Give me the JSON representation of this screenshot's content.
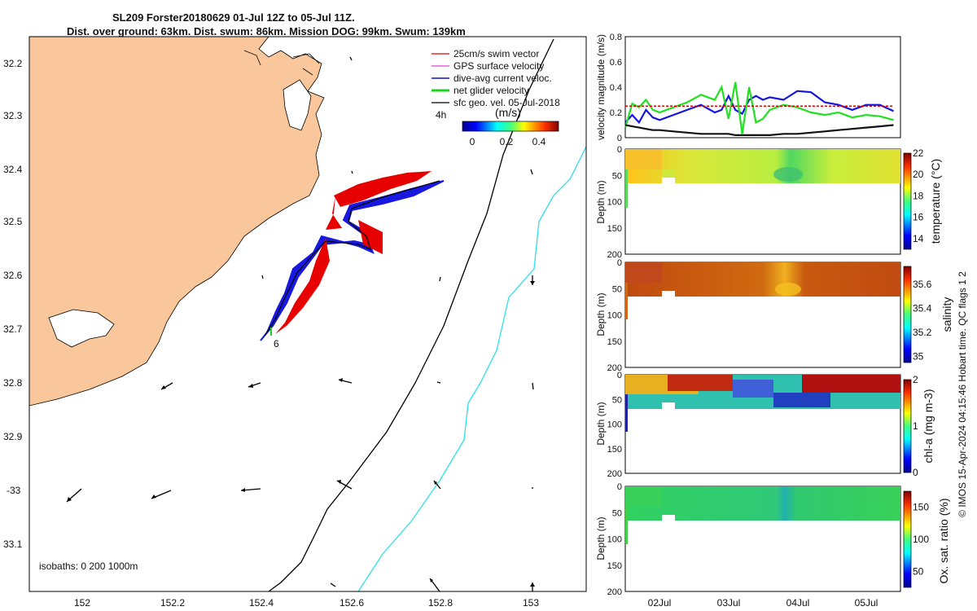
{
  "header": {
    "title_line1": "SL209 Forster20180629 01-Jul 12Z to 05-Jul 11Z.",
    "title_line2": "Dist. over ground: 63km. Dist. swum: 86km. Mission DOG: 99km. Swum: 139km"
  },
  "map": {
    "lat_ticks": [
      "32.2",
      "32.3",
      "32.4",
      "32.5",
      "32.6",
      "32.7",
      "32.8",
      "32.9",
      "-33",
      "33.1"
    ],
    "lon_ticks": [
      "152",
      "152.2",
      "152.4",
      "152.6",
      "152.8",
      "153"
    ],
    "legend": [
      {
        "label": "25cm/s swim vector",
        "color": "#e00000"
      },
      {
        "label": "GPS surface velocity",
        "color": "#e040e0"
      },
      {
        "label": "dive-avg current veloc.",
        "color": "#1010d0"
      },
      {
        "label": "net glider velocity",
        "color": "#20d020"
      },
      {
        "label": "sfc geo. vel. 05-Jul-2018",
        "color": "#000000"
      }
    ],
    "colorbar_title": "(m/s)",
    "colorbar_ticks": [
      "0",
      "0.2",
      "0.4"
    ],
    "time_label": "4h",
    "start_marker": "6",
    "isobaths_label": "isobaths: 0   200  1000m",
    "land_color": "#f9c79b"
  },
  "chart_data": [
    {
      "type": "line",
      "ylabel": "velocity magnitude (m/s)",
      "ylim": [
        0,
        0.8
      ],
      "yticks": [
        "0",
        "0.2",
        "0.4",
        "0.6",
        "0.8"
      ],
      "x_days": [
        1.5,
        1.6,
        1.7,
        1.8,
        1.9,
        2.0,
        2.2,
        2.4,
        2.6,
        2.8,
        2.9,
        3.0,
        3.1,
        3.2,
        3.3,
        3.4,
        3.5,
        3.6,
        3.8,
        4.0,
        4.2,
        4.4,
        4.6,
        4.8,
        5.0,
        5.2,
        5.4
      ],
      "series": [
        {
          "color": "#1515e0",
          "values": [
            0.12,
            0.18,
            0.12,
            0.22,
            0.16,
            0.14,
            0.18,
            0.22,
            0.26,
            0.2,
            0.22,
            0.33,
            0.22,
            0.19,
            0.3,
            0.33,
            0.3,
            0.32,
            0.3,
            0.37,
            0.36,
            0.28,
            0.26,
            0.22,
            0.26,
            0.26,
            0.21
          ]
        },
        {
          "color": "#20e020",
          "values": [
            0.08,
            0.27,
            0.24,
            0.3,
            0.22,
            0.2,
            0.24,
            0.28,
            0.34,
            0.3,
            0.4,
            0.15,
            0.44,
            0.03,
            0.4,
            0.12,
            0.15,
            0.22,
            0.26,
            0.24,
            0.2,
            0.18,
            0.2,
            0.16,
            0.18,
            0.17,
            0.14
          ]
        },
        {
          "color": "#e00000",
          "values": [
            0.25,
            0.25,
            0.25,
            0.25,
            0.25,
            0.25,
            0.25,
            0.25,
            0.25,
            0.25,
            0.25,
            0.25,
            0.25,
            0.25,
            0.25,
            0.25,
            0.25,
            0.25,
            0.25,
            0.25,
            0.25,
            0.25,
            0.25,
            0.25,
            0.25,
            0.25,
            0.25
          ]
        },
        {
          "color": "#111111",
          "values": [
            0.1,
            0.09,
            0.08,
            0.07,
            0.06,
            0.06,
            0.05,
            0.04,
            0.03,
            0.03,
            0.03,
            0.03,
            0.02,
            0.02,
            0.02,
            0.02,
            0.02,
            0.02,
            0.03,
            0.03,
            0.04,
            0.05,
            0.06,
            0.07,
            0.08,
            0.09,
            0.1
          ]
        }
      ]
    },
    {
      "type": "heatmap",
      "field": "temperature",
      "ylabel": "Depth (m)",
      "ylim": [
        0,
        200
      ],
      "yticks": [
        "0",
        "50",
        "100",
        "150",
        "200"
      ],
      "cbar_label": "temperature (°C)",
      "cbar_ticks": [
        "14",
        "16",
        "18",
        "20",
        "22"
      ],
      "cbar_range": [
        13,
        22
      ]
    },
    {
      "type": "heatmap",
      "field": "salinity",
      "ylabel": "Depth (m)",
      "ylim": [
        0,
        200
      ],
      "yticks": [
        "0",
        "50",
        "100",
        "150",
        "200"
      ],
      "cbar_label": "salinity",
      "cbar_ticks": [
        "35",
        "35.2",
        "35.4",
        "35.6"
      ],
      "cbar_range": [
        34.95,
        35.75
      ]
    },
    {
      "type": "heatmap",
      "field": "chl-a",
      "ylabel": "Depth (m)",
      "ylim": [
        0,
        200
      ],
      "yticks": [
        "0",
        "50",
        "100",
        "150",
        "200"
      ],
      "cbar_label": "chl-a (mg m-3)",
      "cbar_ticks": [
        "0",
        "1",
        "2"
      ],
      "cbar_range": [
        0,
        2
      ]
    },
    {
      "type": "heatmap",
      "field": "oxygen",
      "ylabel": "Depth (m)",
      "ylim": [
        0,
        200
      ],
      "yticks": [
        "0",
        "50",
        "100",
        "150",
        "200"
      ],
      "cbar_label": "Ox. sat. ratio (%)",
      "cbar_ticks": [
        "50",
        "100",
        "150"
      ],
      "cbar_range": [
        25,
        175
      ]
    }
  ],
  "time_axis": {
    "ticks": [
      "02Jul",
      "03Jul",
      "04Jul",
      "05Jul"
    ]
  },
  "footer": "© IMOS 15-Apr-2024 04:15:46 Hobart time. QC flags 1  2"
}
